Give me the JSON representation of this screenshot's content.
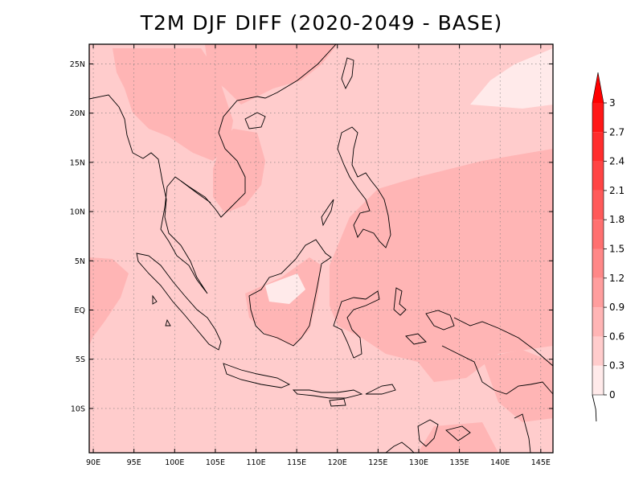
{
  "title": "T2M DJF DIFF (2020-2049 - BASE)",
  "map": {
    "lon_range": [
      89.5,
      146.5
    ],
    "lat_range": [
      -14.5,
      27
    ],
    "lon_ticks": [
      {
        "value": 90,
        "label": "90E"
      },
      {
        "value": 95,
        "label": "95E"
      },
      {
        "value": 100,
        "label": "100E"
      },
      {
        "value": 105,
        "label": "105E"
      },
      {
        "value": 110,
        "label": "110E"
      },
      {
        "value": 115,
        "label": "115E"
      },
      {
        "value": 120,
        "label": "120E"
      },
      {
        "value": 125,
        "label": "125E"
      },
      {
        "value": 130,
        "label": "130E"
      },
      {
        "value": 135,
        "label": "135E"
      },
      {
        "value": 140,
        "label": "140E"
      },
      {
        "value": 145,
        "label": "145E"
      }
    ],
    "lat_ticks": [
      {
        "value": 25,
        "label": "25N"
      },
      {
        "value": 20,
        "label": "20N"
      },
      {
        "value": 15,
        "label": "15N"
      },
      {
        "value": 10,
        "label": "10N"
      },
      {
        "value": 5,
        "label": "5N"
      },
      {
        "value": 0,
        "label": "EQ"
      },
      {
        "value": -5,
        "label": "5S"
      },
      {
        "value": -10,
        "label": "10S"
      }
    ],
    "grid": "dotted"
  },
  "colorbar": {
    "levels": [
      "0",
      "0.3",
      "0.6",
      "0.9",
      "1.2",
      "1.5",
      "1.8",
      "2.1",
      "2.4",
      "2.7",
      "3"
    ],
    "colors": [
      "#ffeaea",
      "#ffcccc",
      "#ffb5b5",
      "#ff9e9e",
      "#ff8888",
      "#ff7070",
      "#ff5a5a",
      "#ff4444",
      "#ff2d2d",
      "#ff1717"
    ],
    "over_color": "#ff0000",
    "placement": "right"
  },
  "colors": {
    "base_field": "#ffcccc",
    "low_field": "#ffeaea",
    "mid_field": "#ffb5b5",
    "coast": "#000000"
  }
}
